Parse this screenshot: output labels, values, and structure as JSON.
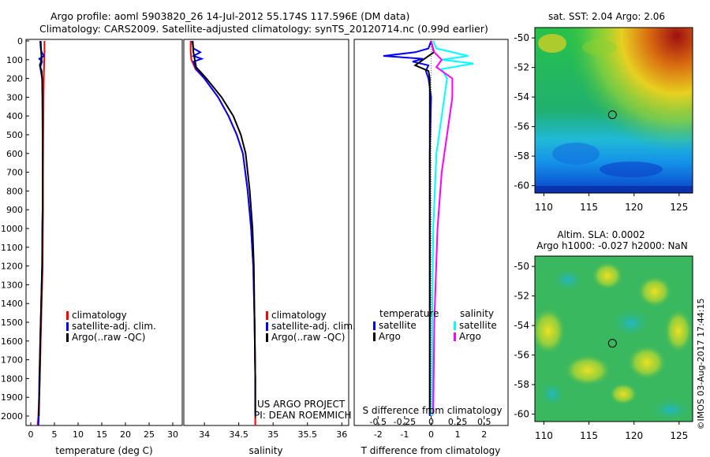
{
  "header": {
    "line1": "Argo profile: aoml 5903820_26 14-Jul-2012 55.174S 117.596E (DM data)",
    "line2": "Climatology: CARS2009. Satellite-adjusted climatology: synTS_20120714.nc (0.99d earlier)"
  },
  "colors": {
    "climatology": "#ff0000",
    "satellite": "#0000ff",
    "argo": "#000000",
    "sal_satellite": "#00ffff",
    "sal_argo": "#ff00ff"
  },
  "chart_data": [
    {
      "id": "temperature",
      "type": "line",
      "xlabel": "temperature (deg C)",
      "ylabel": "",
      "xlim": [
        -1,
        32
      ],
      "ylim": [
        2080,
        0
      ],
      "xticks": [
        0,
        5,
        10,
        15,
        20,
        25,
        30
      ],
      "yticks": [
        0,
        100,
        200,
        300,
        400,
        500,
        600,
        700,
        800,
        900,
        1000,
        1100,
        1200,
        1300,
        1400,
        1500,
        1600,
        1700,
        1800,
        1900,
        2000
      ],
      "legend": {
        "position": "lower-middle",
        "entries": [
          "climatology",
          "satellite-adj. clim.",
          "Argo(..raw -QC)"
        ]
      },
      "series": [
        {
          "name": "climatology",
          "color_key": "climatology",
          "points": [
            [
              2.9,
              0
            ],
            [
              2.9,
              60
            ],
            [
              2.85,
              100
            ],
            [
              2.8,
              150
            ],
            [
              2.75,
              200
            ],
            [
              2.7,
              300
            ],
            [
              2.65,
              500
            ],
            [
              2.6,
              700
            ],
            [
              2.6,
              900
            ],
            [
              2.55,
              1000
            ],
            [
              2.5,
              1200
            ],
            [
              2.3,
              1400
            ],
            [
              2.1,
              1600
            ],
            [
              1.9,
              1800
            ],
            [
              1.6,
              2000
            ],
            [
              1.4,
              2060
            ]
          ]
        },
        {
          "name": "satellite-adj. clim.",
          "color_key": "satellite",
          "points": [
            [
              2.0,
              0
            ],
            [
              2.1,
              40
            ],
            [
              2.3,
              60
            ],
            [
              2.8,
              80
            ],
            [
              1.8,
              95
            ],
            [
              2.4,
              110
            ],
            [
              2.0,
              140
            ],
            [
              2.2,
              170
            ],
            [
              2.4,
              200
            ],
            [
              2.5,
              300
            ],
            [
              2.5,
              500
            ],
            [
              2.5,
              700
            ],
            [
              2.5,
              900
            ],
            [
              2.45,
              1000
            ],
            [
              2.4,
              1200
            ],
            [
              2.2,
              1400
            ],
            [
              2.0,
              1600
            ],
            [
              1.8,
              1800
            ],
            [
              1.7,
              2000
            ],
            [
              1.6,
              2060
            ]
          ]
        },
        {
          "name": "Argo(..raw -QC)",
          "color_key": "argo",
          "points": [
            [
              2.1,
              0
            ],
            [
              2.2,
              60
            ],
            [
              2.3,
              100
            ],
            [
              1.9,
              130
            ],
            [
              2.3,
              160
            ],
            [
              2.4,
              200
            ],
            [
              2.45,
              300
            ],
            [
              2.5,
              500
            ],
            [
              2.5,
              700
            ],
            [
              2.5,
              900
            ],
            [
              2.45,
              1000
            ],
            [
              2.4,
              1200
            ],
            [
              2.2,
              1400
            ],
            [
              2.0,
              1600
            ],
            [
              1.9,
              1800
            ],
            [
              1.7,
              2000
            ]
          ]
        }
      ]
    },
    {
      "id": "salinity",
      "type": "line",
      "xlabel": "salinity",
      "ylabel": "",
      "xlim": [
        33.7,
        36.1
      ],
      "ylim": [
        2080,
        0
      ],
      "xticks": [
        34,
        34.5,
        35,
        35.5,
        36
      ],
      "xticklabels": [
        "34",
        "34.5",
        "35",
        "35.5",
        "36"
      ],
      "legend": {
        "position": "lower-middle",
        "entries": [
          "climatology",
          "satellite-adj. clim.",
          "Argo(..raw -QC)"
        ]
      },
      "annotation": [
        "US ARGO PROJECT",
        "PI: DEAN ROEMMICH"
      ],
      "series": [
        {
          "name": "climatology",
          "color_key": "climatology",
          "points": [
            [
              33.8,
              0
            ],
            [
              33.8,
              60
            ],
            [
              33.81,
              100
            ],
            [
              33.87,
              150
            ],
            [
              34.0,
              200
            ],
            [
              34.2,
              300
            ],
            [
              34.35,
              400
            ],
            [
              34.47,
              500
            ],
            [
              34.56,
              600
            ],
            [
              34.63,
              800
            ],
            [
              34.68,
              1000
            ],
            [
              34.71,
              1200
            ],
            [
              34.73,
              1500
            ],
            [
              34.74,
              1800
            ],
            [
              34.74,
              2060
            ]
          ]
        },
        {
          "name": "satellite-adj. clim.",
          "color_key": "satellite",
          "points": [
            [
              33.82,
              0
            ],
            [
              33.84,
              40
            ],
            [
              33.94,
              60
            ],
            [
              33.84,
              80
            ],
            [
              33.96,
              95
            ],
            [
              33.84,
              110
            ],
            [
              33.88,
              150
            ],
            [
              34.0,
              200
            ],
            [
              34.2,
              300
            ],
            [
              34.35,
              400
            ],
            [
              34.47,
              500
            ],
            [
              34.56,
              600
            ],
            [
              34.63,
              800
            ],
            [
              34.68,
              1000
            ],
            [
              34.71,
              1200
            ],
            [
              34.73,
              1500
            ],
            [
              34.74,
              1800
            ],
            [
              34.74,
              2000
            ]
          ]
        },
        {
          "name": "Argo(..raw -QC)",
          "color_key": "argo",
          "points": [
            [
              33.83,
              0
            ],
            [
              33.84,
              60
            ],
            [
              33.86,
              100
            ],
            [
              33.88,
              140
            ],
            [
              34.03,
              200
            ],
            [
              34.25,
              300
            ],
            [
              34.42,
              400
            ],
            [
              34.53,
              500
            ],
            [
              34.6,
              600
            ],
            [
              34.66,
              800
            ],
            [
              34.7,
              1000
            ],
            [
              34.72,
              1200
            ],
            [
              34.73,
              1500
            ],
            [
              34.74,
              1800
            ],
            [
              34.74,
              1990
            ]
          ]
        }
      ]
    },
    {
      "id": "difference",
      "type": "line",
      "xlabel": "T difference from climatology",
      "x2label": "S difference from climatology",
      "xlim": [
        -2.9,
        2.9
      ],
      "ylim": [
        2080,
        0
      ],
      "xticks": [
        -2,
        -1,
        0,
        1,
        2
      ],
      "xticklabels": [
        "-2",
        "-1",
        "0",
        "1",
        "2"
      ],
      "x2ticks": [
        -0.5,
        -0.25,
        0,
        0.25,
        0.5
      ],
      "x2ticklabels": [
        "-0.5",
        "-0.25",
        "0",
        "0.25",
        "0.5"
      ],
      "legend": {
        "position": "lower-middle",
        "temperature_heading": "temperature",
        "temperature_entries": [
          "satellite",
          "Argo"
        ],
        "salinity_heading": "salinity",
        "salinity_entries": [
          "satellite",
          "Argo"
        ]
      },
      "series": [
        {
          "name": "T satellite",
          "color_key": "satellite",
          "points": [
            [
              0,
              0
            ],
            [
              -0.1,
              40
            ],
            [
              -0.6,
              60
            ],
            [
              -1.8,
              80
            ],
            [
              -0.3,
              95
            ],
            [
              -0.7,
              110
            ],
            [
              -0.1,
              130
            ],
            [
              -0.2,
              160
            ],
            [
              -0.1,
              200
            ],
            [
              0,
              300
            ],
            [
              -0.05,
              600
            ],
            [
              -0.05,
              1000
            ],
            [
              -0.05,
              1500
            ],
            [
              -0.05,
              2000
            ]
          ]
        },
        {
          "name": "T Argo",
          "color_key": "argo",
          "points": [
            [
              0,
              0
            ],
            [
              0.1,
              60
            ],
            [
              -0.3,
              100
            ],
            [
              -0.6,
              130
            ],
            [
              -0.1,
              160
            ],
            [
              -0.05,
              200
            ],
            [
              -0.05,
              600
            ],
            [
              -0.05,
              1000
            ],
            [
              -0.05,
              1500
            ],
            [
              -0.05,
              1990
            ]
          ]
        },
        {
          "name": "S satellite",
          "color_key": "sal_satellite",
          "points": [
            [
              0.02,
              0
            ],
            [
              0.05,
              40
            ],
            [
              0.35,
              80
            ],
            [
              0.1,
              100
            ],
            [
              0.4,
              120
            ],
            [
              0.1,
              150
            ],
            [
              0.15,
              200
            ],
            [
              0.05,
              600
            ],
            [
              0.02,
              1000
            ],
            [
              0.01,
              1500
            ],
            [
              0.01,
              2000
            ]
          ]
        },
        {
          "name": "S Argo",
          "color_key": "sal_argo",
          "points": [
            [
              0,
              0
            ],
            [
              0.03,
              60
            ],
            [
              0.1,
              100
            ],
            [
              0.05,
              140
            ],
            [
              0.2,
              200
            ],
            [
              0.2,
              300
            ],
            [
              0.15,
              500
            ],
            [
              0.1,
              700
            ],
            [
              0.06,
              1000
            ],
            [
              0.03,
              1500
            ],
            [
              0.02,
              1990
            ]
          ]
        }
      ]
    },
    {
      "id": "sst_map",
      "type": "heatmap",
      "title": "sat. SST: 2.04 Argo: 2.06",
      "xlim": [
        109,
        126.5
      ],
      "ylim": [
        -60.5,
        -49.3
      ],
      "xticks": [
        110,
        115,
        120,
        125
      ],
      "yticks": [
        -50,
        -52,
        -54,
        -56,
        -58,
        -60
      ],
      "marker": {
        "lon": 117.6,
        "lat": -55.2
      }
    },
    {
      "id": "sla_map",
      "type": "heatmap",
      "title": "Altim. SLA: 0.0002",
      "subtitle": "Argo h1000: -0.027 h2000: NaN",
      "xlim": [
        109,
        126.5
      ],
      "ylim": [
        -60.5,
        -49.3
      ],
      "xticks": [
        110,
        115,
        120,
        125
      ],
      "yticks": [
        -50,
        -52,
        -54,
        -56,
        -58,
        -60
      ],
      "marker": {
        "lon": 117.6,
        "lat": -55.2
      }
    }
  ],
  "credit": "©IMOS 03-Aug-2017 17:44:15"
}
